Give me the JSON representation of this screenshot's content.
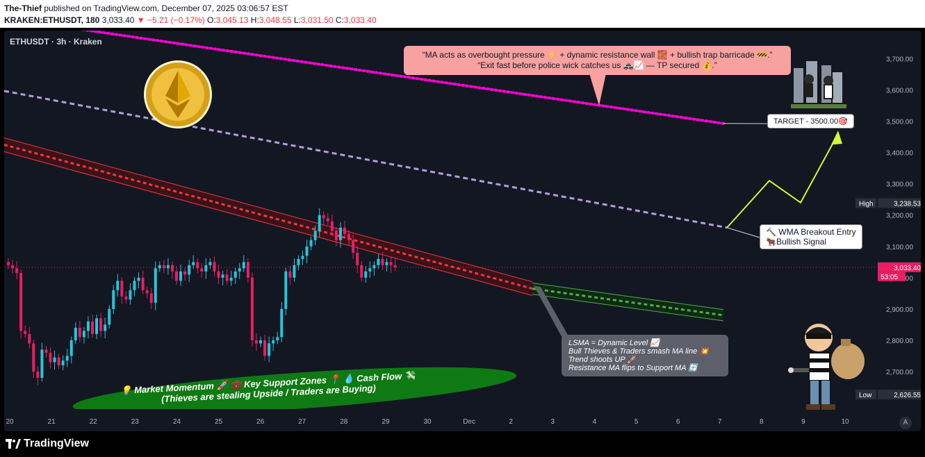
{
  "header": {
    "author": "The-Thief",
    "published_text": " published on TradingView.com, December 07, 2025 03:06:57 EST",
    "symbol_line": "KRAKEN:ETHUSDT, 180",
    "last": "3,033.40",
    "change": "▼ −5.21 (−0.17%)",
    "open_label": "O:",
    "open": "3,045.13",
    "high_label": "H:",
    "high": "3,048.55",
    "low_label": "L:",
    "low": "3,031.50",
    "close_label": "C:",
    "close": "3,033.40"
  },
  "chart_title": "ETHUSDT · 3h · Kraken",
  "colors": {
    "background": "#131722",
    "up": "#26c6da",
    "down": "#e91e63",
    "magenta_dots": "#ff00d4",
    "lavender_dash": "#b39ddb",
    "red_channel": "#f23645",
    "green_channel": "#4caf50",
    "arrow": "#d4f53a",
    "callout_bg": "#f7a1a1",
    "ellipse": "#0f7a13"
  },
  "chart_data": {
    "type": "candlestick",
    "ylim": [
      2580,
      3790
    ],
    "y_ticks": [
      2700,
      2800,
      2900,
      3000,
      3100,
      3200,
      3300,
      3400,
      3500,
      3600,
      3700
    ],
    "y_tick_labels": [
      "2,700.00",
      "2,800.00",
      "2,900.00",
      "3,000.00",
      "3,100.00",
      "3,200.00",
      "3,300.00",
      "3,400.00",
      "3,500.00",
      "3,600.00",
      "3,700.00"
    ],
    "x_tick_labels": [
      "20",
      "21",
      "22",
      "23",
      "24",
      "25",
      "26",
      "27",
      "28",
      "29",
      "30",
      "Dec",
      "2",
      "3",
      "4",
      "5",
      "6",
      "7",
      "8",
      "9",
      "10"
    ],
    "last_price_label": "3,033.40",
    "countdown_label": "53:05",
    "high_tag": {
      "label": "High",
      "value": "3,238.53"
    },
    "low_tag": {
      "label": "Low",
      "value": "2,626.55"
    },
    "closes": [
      3040,
      3030,
      3015,
      2830,
      2820,
      2790,
      2700,
      2680,
      2770,
      2760,
      2730,
      2745,
      2720,
      2735,
      2750,
      2800,
      2840,
      2810,
      2830,
      2860,
      2820,
      2870,
      2830,
      2850,
      2900,
      2960,
      2990,
      2940,
      2930,
      2960,
      2990,
      3000,
      2960,
      2950,
      2920,
      3030,
      3040,
      3030,
      3040,
      3020,
      2990,
      3020,
      3010,
      3040,
      3050,
      3030,
      3020,
      3040,
      3050,
      3020,
      3000,
      3010,
      2990,
      3000,
      3020,
      3030,
      3050,
      3000,
      2800,
      2790,
      2800,
      2750,
      2790,
      2800,
      2810,
      2900,
      3020,
      3000,
      3040,
      3060,
      3070,
      3100,
      3120,
      3150,
      3200,
      3190,
      3180,
      3150,
      3120,
      3160,
      3140,
      3120,
      3080,
      3040,
      3000,
      3020,
      3030,
      3040,
      3060,
      3040,
      3050,
      3040,
      3033.4
    ],
    "ma_lines": {
      "magenta_dotted": [
        [
          0,
          3830
        ],
        [
          1035,
          3493
        ]
      ],
      "lavender_dashed": [
        [
          0,
          3597
        ],
        [
          1040,
          3160
        ]
      ],
      "red_channel": [
        [
          0,
          3425
        ],
        [
          760,
          2965
        ]
      ],
      "green_channel": [
        [
          760,
          2965
        ],
        [
          1035,
          2880
        ]
      ]
    }
  },
  "annotations": {
    "callout_line1": "“MA acts as overbought pressure ⚡ + dynamic resistance wall 🧱 + bullish trap barricade 🚧.”",
    "callout_line2": "“Exit fast before police wick catches us 🚓📈 — TP secured 💰.”",
    "target_label": "TARGET - 3500.00🎯",
    "entry_line1": "🔨 WMA Breakout Entry",
    "entry_line2": "🐂Bullish Signal",
    "lsma_line1": "LSMA = Dynamic Level 📈",
    "lsma_line2": "Bull Thieves & Traders smash MA line 💥",
    "lsma_line3": "Trend shoots UP 🚀",
    "lsma_line4": "Resistance MA flips to Support MA 🔄",
    "ellipse_line1": "💡 Market Momentum 🚀 💼 Key Support Zones 📍 💧 Cash Flow 💸",
    "ellipse_line2": "(Thieves are stealing Upside / Traders are Buying)"
  },
  "footer": {
    "brand": "TradingView",
    "auto_label": "A"
  }
}
